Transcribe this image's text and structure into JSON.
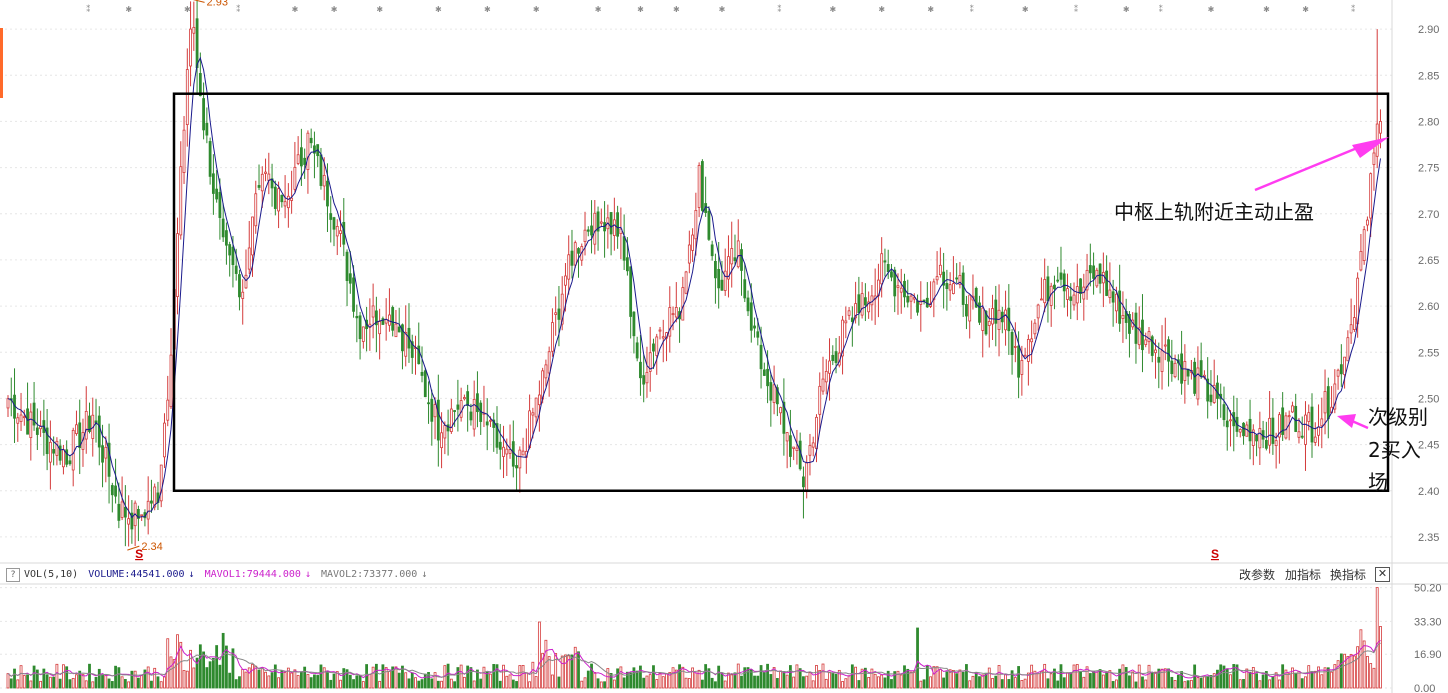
{
  "chart_data": [
    {
      "type": "candlestick",
      "title": "",
      "y_axis_ticks": [
        "2.90",
        "2.85",
        "2.80",
        "2.75",
        "2.70",
        "2.65",
        "2.60",
        "2.55",
        "2.50",
        "2.45",
        "2.40",
        "2.35"
      ],
      "ylim": [
        2.325,
        2.925
      ],
      "colors": {
        "up": "#d43a3a",
        "down": "#2f8a2f",
        "ma": "#1a1a8c",
        "arrow": "#ff3cf0",
        "box": "#000000"
      },
      "price_labels": {
        "high": "2.93",
        "low": "2.34"
      },
      "signal_markers": [
        "S",
        "S"
      ],
      "pivot_box": {
        "upper": 2.83,
        "lower": 2.4
      },
      "annotations": {
        "take_profit": "中枢上轨附近主动止盈",
        "buy_line1": "次级别",
        "buy_line2": "2买入",
        "buy_line3": "场"
      },
      "anchors": [
        {
          "i": 0,
          "c": 2.5
        },
        {
          "i": 10,
          "c": 2.46
        },
        {
          "i": 18,
          "c": 2.44
        },
        {
          "i": 26,
          "c": 2.48
        },
        {
          "i": 34,
          "c": 2.38
        },
        {
          "i": 40,
          "c": 2.37
        },
        {
          "i": 46,
          "c": 2.4
        },
        {
          "i": 50,
          "c": 2.55
        },
        {
          "i": 56,
          "c": 2.92
        },
        {
          "i": 60,
          "c": 2.8
        },
        {
          "i": 66,
          "c": 2.66
        },
        {
          "i": 72,
          "c": 2.62
        },
        {
          "i": 78,
          "c": 2.76
        },
        {
          "i": 84,
          "c": 2.7
        },
        {
          "i": 92,
          "c": 2.78
        },
        {
          "i": 100,
          "c": 2.7
        },
        {
          "i": 108,
          "c": 2.58
        },
        {
          "i": 116,
          "c": 2.6
        },
        {
          "i": 124,
          "c": 2.55
        },
        {
          "i": 132,
          "c": 2.47
        },
        {
          "i": 140,
          "c": 2.5
        },
        {
          "i": 148,
          "c": 2.46
        },
        {
          "i": 156,
          "c": 2.42
        },
        {
          "i": 164,
          "c": 2.52
        },
        {
          "i": 172,
          "c": 2.65
        },
        {
          "i": 180,
          "c": 2.7
        },
        {
          "i": 188,
          "c": 2.68
        },
        {
          "i": 194,
          "c": 2.52
        },
        {
          "i": 200,
          "c": 2.58
        },
        {
          "i": 206,
          "c": 2.6
        },
        {
          "i": 212,
          "c": 2.74
        },
        {
          "i": 218,
          "c": 2.62
        },
        {
          "i": 224,
          "c": 2.66
        },
        {
          "i": 230,
          "c": 2.55
        },
        {
          "i": 238,
          "c": 2.47
        },
        {
          "i": 244,
          "c": 2.41
        },
        {
          "i": 250,
          "c": 2.52
        },
        {
          "i": 256,
          "c": 2.57
        },
        {
          "i": 262,
          "c": 2.6
        },
        {
          "i": 268,
          "c": 2.64
        },
        {
          "i": 274,
          "c": 2.62
        },
        {
          "i": 280,
          "c": 2.6
        },
        {
          "i": 286,
          "c": 2.64
        },
        {
          "i": 292,
          "c": 2.62
        },
        {
          "i": 298,
          "c": 2.58
        },
        {
          "i": 304,
          "c": 2.6
        },
        {
          "i": 310,
          "c": 2.54
        },
        {
          "i": 316,
          "c": 2.6
        },
        {
          "i": 322,
          "c": 2.64
        },
        {
          "i": 328,
          "c": 2.61
        },
        {
          "i": 334,
          "c": 2.64
        },
        {
          "i": 340,
          "c": 2.6
        },
        {
          "i": 346,
          "c": 2.57
        },
        {
          "i": 352,
          "c": 2.56
        },
        {
          "i": 358,
          "c": 2.54
        },
        {
          "i": 364,
          "c": 2.52
        },
        {
          "i": 370,
          "c": 2.5
        },
        {
          "i": 376,
          "c": 2.46
        },
        {
          "i": 382,
          "c": 2.47
        },
        {
          "i": 388,
          "c": 2.46
        },
        {
          "i": 394,
          "c": 2.48
        },
        {
          "i": 400,
          "c": 2.47
        },
        {
          "i": 406,
          "c": 2.5
        },
        {
          "i": 412,
          "c": 2.58
        },
        {
          "i": 417,
          "c": 2.7
        },
        {
          "i": 421,
          "c": 2.82
        }
      ]
    },
    {
      "type": "bar",
      "indicator": "VOL(5,10)",
      "legend": {
        "indicator": "VOL(5,10)",
        "volume": "VOLUME:44541.000",
        "mavol1": "MAVOL1:79444.000",
        "mavol2": "MAVOL2:73377.000"
      },
      "y_axis_ticks": [
        "50.20",
        "33.30",
        "16.90",
        "0.00"
      ],
      "ylim": [
        0,
        52
      ],
      "colors": {
        "up": "#d43a3a",
        "down": "#2f8a2f",
        "volume": "#1a1a8c",
        "mavol1": "#cc22cc",
        "mavol2": "#777777"
      }
    }
  ],
  "toolbar": {
    "help_label": "?",
    "change_params": "改参数",
    "add_indicator": "加指标",
    "swap_indicator": "换指标",
    "close_label": "✕"
  }
}
